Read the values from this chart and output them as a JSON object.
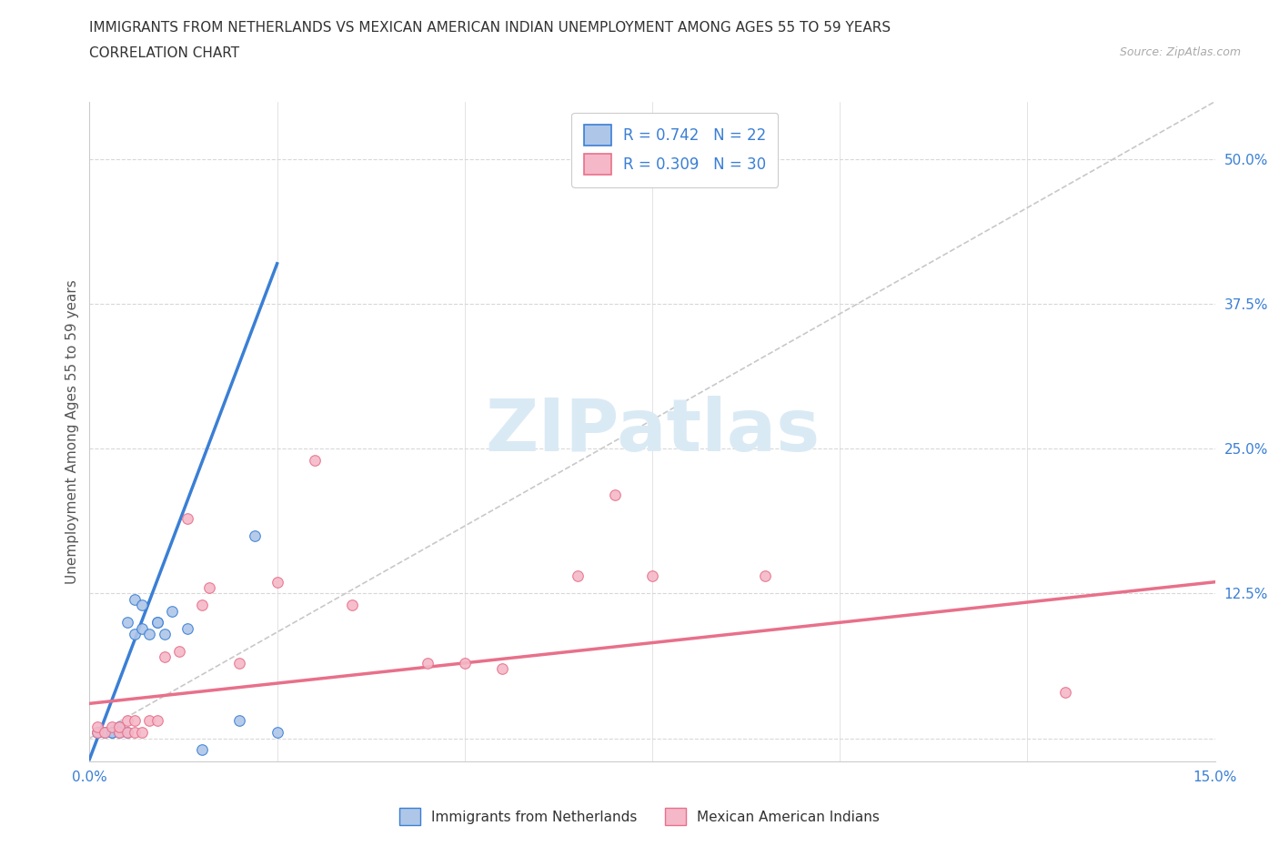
{
  "title_line1": "IMMIGRANTS FROM NETHERLANDS VS MEXICAN AMERICAN INDIAN UNEMPLOYMENT AMONG AGES 55 TO 59 YEARS",
  "title_line2": "CORRELATION CHART",
  "source_text": "Source: ZipAtlas.com",
  "ylabel": "Unemployment Among Ages 55 to 59 years",
  "xlim": [
    0.0,
    0.15
  ],
  "ylim": [
    -0.02,
    0.55
  ],
  "x_ticks": [
    0.0,
    0.025,
    0.05,
    0.075,
    0.1,
    0.125,
    0.15
  ],
  "x_tick_labels": [
    "0.0%",
    "",
    "",
    "",
    "",
    "",
    "15.0%"
  ],
  "y_ticks": [
    0.0,
    0.125,
    0.25,
    0.375,
    0.5
  ],
  "y_tick_labels": [
    "",
    "12.5%",
    "25.0%",
    "37.5%",
    "50.0%"
  ],
  "r_netherlands": 0.742,
  "n_netherlands": 22,
  "r_mexican": 0.309,
  "n_mexican": 30,
  "netherlands_color": "#aec6e8",
  "mexican_color": "#f4b8c8",
  "line_netherlands_color": "#3a7fd5",
  "line_mexican_color": "#e8708a",
  "diagonal_color": "#c8c8c8",
  "watermark_text": "ZIPatlas",
  "watermark_color": "#daeaf5",
  "netherlands_scatter_x": [
    0.001,
    0.002,
    0.003,
    0.003,
    0.004,
    0.004,
    0.005,
    0.005,
    0.006,
    0.006,
    0.007,
    0.007,
    0.008,
    0.009,
    0.009,
    0.01,
    0.011,
    0.013,
    0.015,
    0.02,
    0.022,
    0.025
  ],
  "netherlands_scatter_y": [
    0.005,
    0.005,
    0.005,
    0.005,
    0.005,
    0.01,
    0.005,
    0.1,
    0.09,
    0.12,
    0.095,
    0.115,
    0.09,
    0.1,
    0.1,
    0.09,
    0.11,
    0.095,
    -0.01,
    0.015,
    0.175,
    0.005
  ],
  "mexican_scatter_x": [
    0.001,
    0.001,
    0.002,
    0.003,
    0.004,
    0.004,
    0.005,
    0.005,
    0.006,
    0.006,
    0.007,
    0.008,
    0.009,
    0.01,
    0.012,
    0.013,
    0.015,
    0.016,
    0.02,
    0.025,
    0.03,
    0.035,
    0.045,
    0.05,
    0.055,
    0.065,
    0.07,
    0.075,
    0.09,
    0.13
  ],
  "mexican_scatter_y": [
    0.005,
    0.01,
    0.005,
    0.01,
    0.005,
    0.01,
    0.005,
    0.015,
    0.005,
    0.015,
    0.005,
    0.015,
    0.015,
    0.07,
    0.075,
    0.19,
    0.115,
    0.13,
    0.065,
    0.135,
    0.24,
    0.115,
    0.065,
    0.065,
    0.06,
    0.14,
    0.21,
    0.14,
    0.14,
    0.04
  ],
  "nl_line_x": [
    0.0,
    0.025
  ],
  "nl_line_y": [
    -0.018,
    0.41
  ],
  "mex_line_x": [
    0.0,
    0.15
  ],
  "mex_line_y": [
    0.03,
    0.135
  ],
  "background_color": "#ffffff",
  "grid_color": "#d8d8d8",
  "legend_box_color": "#ffffff",
  "legend_edge_color": "#cccccc"
}
